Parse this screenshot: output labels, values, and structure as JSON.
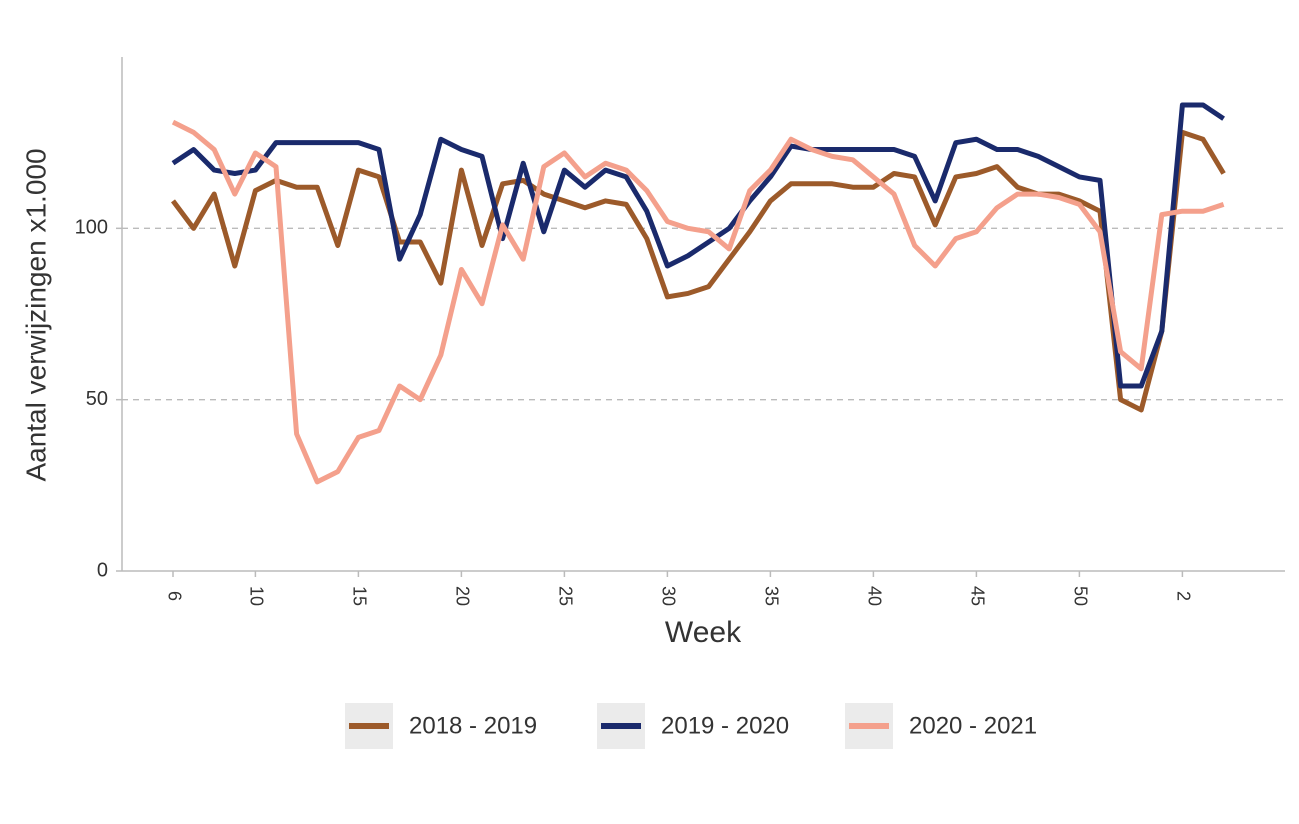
{
  "chart_data": {
    "type": "line",
    "y_label": "Aantal verwijzingen x1.000",
    "x_label": "Week",
    "categories": [
      "6",
      null,
      null,
      null,
      "10",
      null,
      null,
      null,
      null,
      "15",
      null,
      null,
      null,
      null,
      "20",
      null,
      null,
      null,
      null,
      "25",
      null,
      null,
      null,
      null,
      "30",
      null,
      null,
      null,
      null,
      "35",
      null,
      null,
      null,
      null,
      "40",
      null,
      null,
      null,
      null,
      "45",
      null,
      null,
      null,
      null,
      "50",
      null,
      null,
      null,
      null,
      "2",
      null,
      null
    ],
    "series": [
      {
        "name": "2018 - 2019",
        "color": "#9c5a2a",
        "values": [
          108,
          100,
          110,
          89,
          111,
          114,
          112,
          112,
          95,
          117,
          115,
          96,
          96,
          84,
          117,
          95,
          113,
          114,
          110,
          108,
          106,
          108,
          107,
          97,
          80,
          81,
          83,
          91,
          99,
          108,
          113,
          113,
          113,
          112,
          112,
          116,
          115,
          101,
          115,
          116,
          118,
          112,
          110,
          110,
          108,
          105,
          50,
          47,
          70,
          128,
          126,
          116
        ]
      },
      {
        "name": "2019 - 2020",
        "color": "#1a2a6c",
        "values": [
          119,
          123,
          117,
          116,
          117,
          125,
          125,
          125,
          125,
          125,
          123,
          91,
          104,
          126,
          123,
          121,
          97,
          119,
          99,
          117,
          112,
          117,
          115,
          105,
          89,
          92,
          96,
          100,
          108,
          115,
          124,
          123,
          123,
          123,
          123,
          123,
          121,
          108,
          125,
          126,
          123,
          123,
          121,
          118,
          115,
          114,
          54,
          54,
          70,
          136,
          136,
          132
        ]
      },
      {
        "name": "2020 - 2021",
        "color": "#f4a08c",
        "values": [
          131,
          128,
          123,
          110,
          122,
          118,
          40,
          26,
          29,
          39,
          41,
          54,
          50,
          63,
          88,
          78,
          101,
          91,
          118,
          122,
          115,
          119,
          117,
          111,
          102,
          100,
          99,
          94,
          111,
          117,
          126,
          123,
          121,
          120,
          115,
          110,
          95,
          89,
          97,
          99,
          106,
          110,
          110,
          109,
          107,
          99,
          64,
          59,
          104,
          105,
          105,
          107
        ]
      }
    ],
    "ylim": [
      0,
      150
    ],
    "yticks": [
      0,
      50,
      100
    ],
    "grid": true
  }
}
